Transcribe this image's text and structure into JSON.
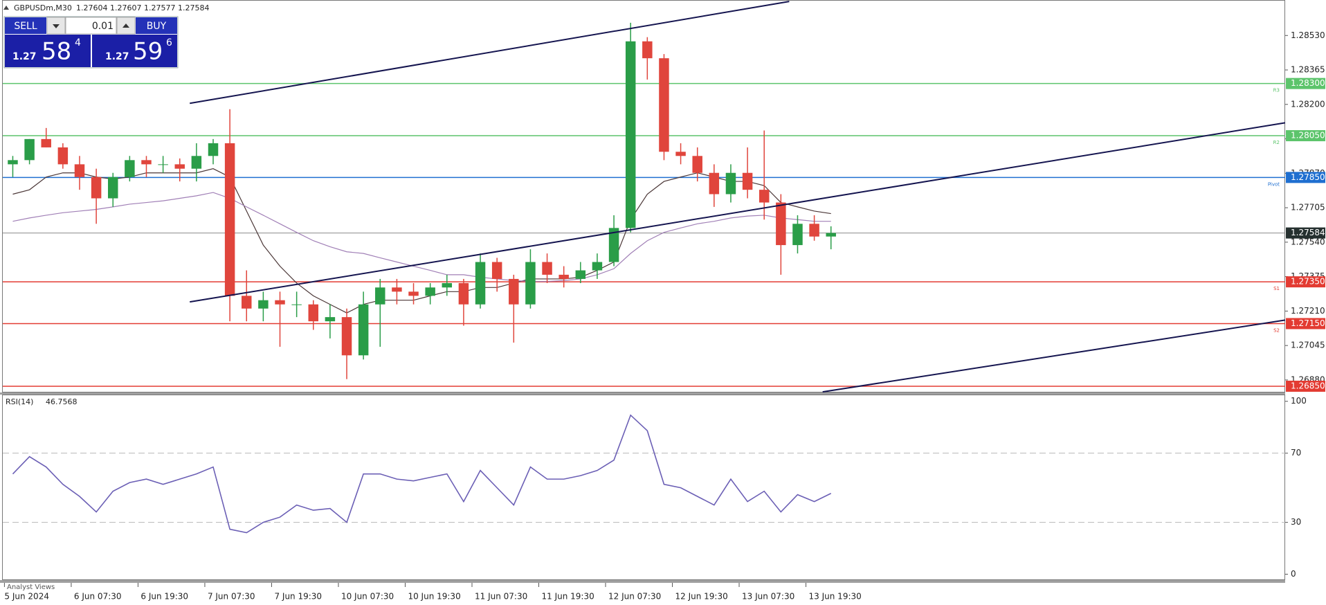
{
  "header": {
    "symbol": "GBPUSDm,M30",
    "ohlc": "1.27604 1.27607 1.27577 1.27584"
  },
  "trade_panel": {
    "sell": "SELL",
    "buy": "BUY",
    "lot": "0.01",
    "bid_big": "1.27",
    "bid_pips": "58",
    "bid_point": "4",
    "ask_big": "1.27",
    "ask_pips": "59",
    "ask_point": "6"
  },
  "footer": {
    "tab": "Analyst Views"
  },
  "chart_data": [
    {
      "type": "candlestick",
      "categories": [
        "5 Jun 2024",
        null,
        null,
        null,
        "6 Jun 07:30",
        null,
        null,
        null,
        "6 Jun 19:30",
        null,
        null,
        null,
        "7 Jun 07:30",
        null,
        null,
        null,
        "7 Jun 19:30",
        null,
        null,
        null,
        "10 Jun 07:30",
        null,
        null,
        null,
        "10 Jun 19:30",
        null,
        null,
        null,
        "11 Jun 07:30",
        null,
        null,
        null,
        "11 Jun 19:30",
        null,
        null,
        null,
        "12 Jun 07:30",
        null,
        null,
        null,
        "12 Jun 19:30",
        null,
        null,
        null,
        "13 Jun 07:30",
        null,
        null,
        null,
        "13 Jun 19:30",
        null
      ],
      "open": [
        1.27913,
        1.27933,
        1.28034,
        1.27994,
        1.27913,
        1.27852,
        1.2775,
        1.27852,
        1.27933,
        1.27913,
        1.27913,
        1.27892,
        1.27953,
        1.28014,
        1.27283,
        1.27222,
        1.27262,
        1.27242,
        1.27242,
        1.27161,
        1.27181,
        1.26998,
        1.27242,
        1.27323,
        1.27303,
        1.27283,
        1.27323,
        1.27344,
        1.27242,
        1.27445,
        1.27364,
        1.27242,
        1.27445,
        1.27384,
        1.27364,
        1.27405,
        1.27445,
        1.27608,
        1.28502,
        1.28421,
        1.27973,
        1.27953,
        1.27872,
        1.2777,
        1.27872,
        1.27791,
        1.2773,
        1.27526,
        1.27628,
        1.27567
      ],
      "high": [
        1.27953,
        1.28034,
        1.28087,
        1.28014,
        1.27953,
        1.27892,
        1.27872,
        1.27953,
        1.27953,
        1.27953,
        1.27941,
        1.28014,
        1.28034,
        1.28177,
        1.27405,
        1.27303,
        1.27303,
        1.27303,
        1.27262,
        1.27242,
        1.27222,
        1.27303,
        1.27364,
        1.27364,
        1.27344,
        1.27344,
        1.27384,
        1.27364,
        1.27486,
        1.27465,
        1.27384,
        1.27506,
        1.27486,
        1.27425,
        1.27445,
        1.27486,
        1.27669,
        1.28591,
        1.28522,
        1.28441,
        1.28014,
        1.27994,
        1.27913,
        1.27913,
        1.27994,
        1.28075,
        1.2777,
        1.27669,
        1.27669,
        1.27616
      ],
      "low": [
        1.27852,
        1.27913,
        1.27994,
        1.27892,
        1.27791,
        1.27628,
        1.27709,
        1.27831,
        1.27852,
        1.27872,
        1.27831,
        1.27831,
        1.27913,
        1.27161,
        1.27161,
        1.27161,
        1.27039,
        1.27181,
        1.2712,
        1.27079,
        1.26884,
        1.26978,
        1.27039,
        1.27242,
        1.27242,
        1.27242,
        1.27283,
        1.2714,
        1.27222,
        1.27303,
        1.27059,
        1.27222,
        1.27344,
        1.27323,
        1.27344,
        1.27364,
        1.27425,
        1.27587,
        1.28319,
        1.27933,
        1.27913,
        1.27831,
        1.27709,
        1.2773,
        1.2775,
        1.27648,
        1.27384,
        1.27486,
        1.27547,
        1.27506
      ],
      "close": [
        1.27933,
        1.28034,
        1.27994,
        1.27913,
        1.27852,
        1.2775,
        1.27852,
        1.27933,
        1.27913,
        1.27913,
        1.27892,
        1.27953,
        1.28014,
        1.27283,
        1.27222,
        1.27262,
        1.27242,
        1.27242,
        1.27161,
        1.27181,
        1.26998,
        1.27242,
        1.27323,
        1.27303,
        1.27283,
        1.27323,
        1.27344,
        1.27242,
        1.27445,
        1.27364,
        1.27242,
        1.27445,
        1.27384,
        1.27364,
        1.27405,
        1.27445,
        1.27608,
        1.28502,
        1.28421,
        1.27973,
        1.27953,
        1.27872,
        1.2777,
        1.27872,
        1.27791,
        1.2773,
        1.27526,
        1.27628,
        1.27567,
        1.27584
      ],
      "up_color": "#2a9d48",
      "down_color": "#e0453c",
      "overlays": [
        {
          "color": "#4a3636",
          "values": [
            1.2777,
            1.27791,
            1.27852,
            1.27872,
            1.27872,
            1.27852,
            1.27843,
            1.27852,
            1.27872,
            1.27872,
            1.27872,
            1.27872,
            1.27892,
            1.27852,
            1.27689,
            1.27526,
            1.27425,
            1.27344,
            1.27283,
            1.27242,
            1.27201,
            1.27242,
            1.27262,
            1.27262,
            1.27262,
            1.27283,
            1.27303,
            1.27303,
            1.27323,
            1.27323,
            1.27344,
            1.27364,
            1.27364,
            1.27364,
            1.27372,
            1.27405,
            1.27445,
            1.27648,
            1.2777,
            1.27831,
            1.27852,
            1.27872,
            1.27852,
            1.27831,
            1.27831,
            1.27811,
            1.2773,
            1.27709,
            1.27689,
            1.27677
          ]
        },
        {
          "color": "#a07fb6",
          "values": [
            1.2764,
            1.27656,
            1.27669,
            1.27681,
            1.27689,
            1.27697,
            1.27709,
            1.27722,
            1.2773,
            1.27738,
            1.2775,
            1.27762,
            1.27778,
            1.2775,
            1.27709,
            1.27669,
            1.27628,
            1.27587,
            1.27547,
            1.27518,
            1.27494,
            1.27486,
            1.27465,
            1.27445,
            1.27425,
            1.27405,
            1.27384,
            1.27384,
            1.27372,
            1.27364,
            1.27356,
            1.27352,
            1.27352,
            1.27356,
            1.27364,
            1.27384,
            1.27413,
            1.27486,
            1.27547,
            1.27587,
            1.27608,
            1.27628,
            1.2764,
            1.27656,
            1.27665,
            1.27669,
            1.27656,
            1.27648,
            1.2764,
            1.2764
          ]
        }
      ],
      "trendlines": [
        {
          "color": "#14144f",
          "x": [
            10.6,
            46.5
          ],
          "y": [
            1.28205,
            1.28693
          ]
        },
        {
          "color": "#14144f",
          "x": [
            10.6,
            76.2
          ],
          "y": [
            1.27254,
            1.28112
          ]
        },
        {
          "color": "#14144f",
          "x": [
            48.5,
            76.2
          ],
          "y": [
            1.26823,
            1.27167
          ]
        }
      ],
      "levels": [
        {
          "value": 1.283,
          "label": "1.28300",
          "name": "R3",
          "color": "#5cc46b"
        },
        {
          "value": 1.2805,
          "label": "1.28050",
          "name": "R2",
          "color": "#5cc46b"
        },
        {
          "value": 1.2785,
          "label": "1.27850",
          "name": "Pivot",
          "color": "#1f6fd0"
        },
        {
          "value": 1.2735,
          "label": "1.27350",
          "name": "S1",
          "color": "#e33b32"
        },
        {
          "value": 1.2715,
          "label": "1.27150",
          "name": "S2",
          "color": "#e33b32"
        },
        {
          "value": 1.2685,
          "label": "1.26850",
          "color": "#e33b32"
        }
      ],
      "last_price": 1.27584,
      "xlim": [
        -0.6,
        76.2
      ],
      "ylim": [
        1.2682,
        1.287
      ],
      "yticks": [
        {
          "value": 1.2688,
          "label": "1.26880"
        },
        1.27045,
        {
          "value": 1.2721,
          "label": "1.27210"
        },
        1.27375,
        {
          "value": 1.2754,
          "label": "1.27540"
        },
        1.27705,
        {
          "value": 1.2787,
          "label": "1.27870"
        },
        1.28035,
        {
          "value": 1.282,
          "label": "1.28200"
        },
        1.28365,
        {
          "value": 1.2853,
          "label": "1.28530"
        }
      ]
    },
    {
      "type": "line",
      "label": "RSI(14)",
      "color": "#6b5fb5",
      "values": [
        58,
        68,
        62,
        52,
        45,
        36,
        48,
        53,
        55,
        52,
        55,
        58,
        62,
        26,
        24,
        30,
        33,
        40,
        37,
        38,
        30,
        58,
        58,
        55,
        54,
        56,
        58,
        42,
        60,
        50,
        40,
        62,
        55,
        55,
        57,
        60,
        66,
        92,
        83,
        52,
        50,
        45,
        40,
        55,
        42,
        48,
        36,
        46,
        42,
        46.7568
      ],
      "ylim": [
        -3.4,
        103.9
      ],
      "yticks": [
        0,
        30,
        70,
        100
      ],
      "levels": [
        30,
        70
      ]
    }
  ]
}
